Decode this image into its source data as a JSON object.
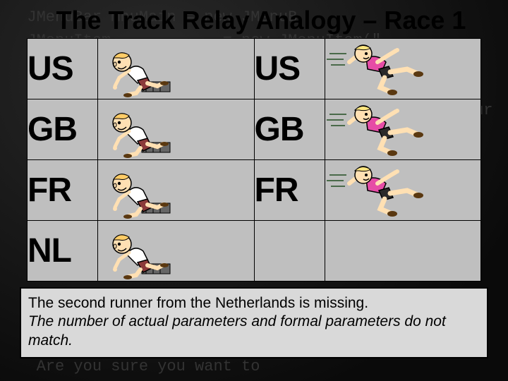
{
  "title": "The Track Relay Analogy – Race 1",
  "bg_code": "  JMenuBar mnuMain = new JMenuB\n  JMenuItem            = new JMenuItem(\"\n\n\n                                                  ur\n                                               on\n                                          \");\n\n\n                                               ur\n                                           tio\n                                          x?\"\n         priBottom\n\n\n   Are you sure you want to\n                          if(option",
  "rows_left": [
    {
      "label": "US",
      "has_runner": true
    },
    {
      "label": "GB",
      "has_runner": true
    },
    {
      "label": "FR",
      "has_runner": true
    },
    {
      "label": "NL",
      "has_runner": true
    }
  ],
  "rows_right": [
    {
      "label": "US",
      "has_runner": true
    },
    {
      "label": "GB",
      "has_runner": true
    },
    {
      "label": "FR",
      "has_runner": true
    },
    {
      "label": "",
      "has_runner": false
    }
  ],
  "runner_left_style": {
    "skin": "#ffe0b3",
    "hair": "#ffcc66",
    "shirt": "#ffffff",
    "shorts": "#8b3a3a",
    "shoe": "#5a3810"
  },
  "runner_right_style": {
    "skin": "#ffe0b3",
    "hair": "#ffe680",
    "shirt": "#e64ca6",
    "shorts": "#2a2a2a",
    "shoe": "#5a3810",
    "motion": "#4a6a4a"
  },
  "caption": {
    "line1": "The second runner from the Netherlands is missing.",
    "line2": "The number of actual parameters and formal parameters do not match."
  },
  "colors": {
    "title_color": "#000000",
    "table_bg": "#bfbfbf",
    "caption_bg": "#d9d9d9",
    "border": "#000000"
  }
}
